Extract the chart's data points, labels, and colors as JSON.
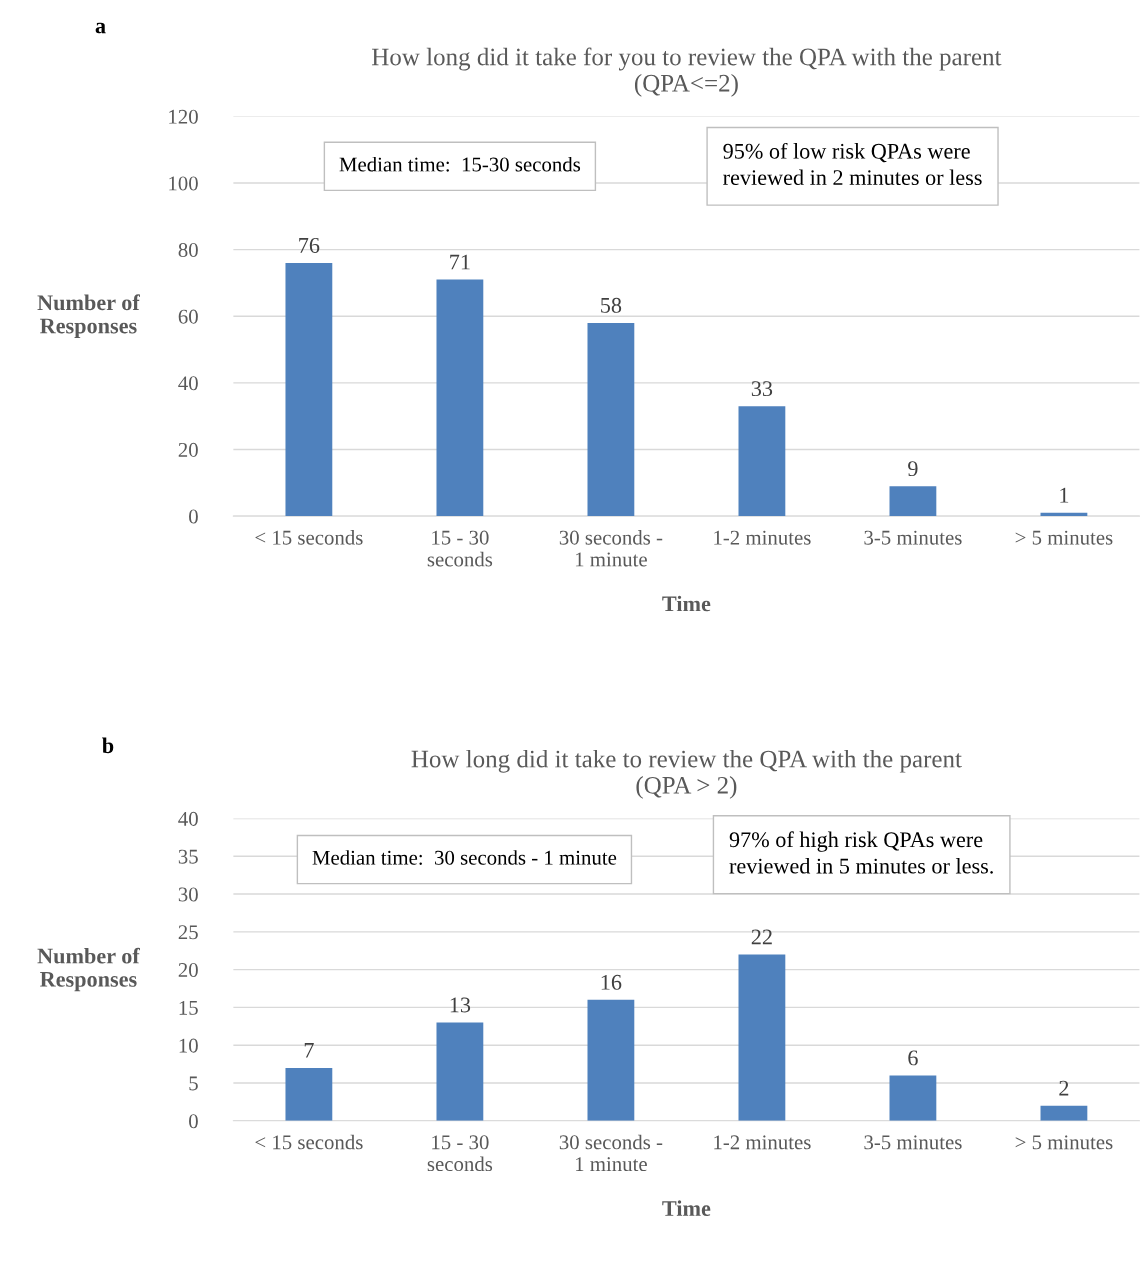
{
  "chart_data": [
    {
      "type": "bar",
      "title": "How long did it take for you to review the QPA with the parent\n(QPA<=2)",
      "xlabel": "Time",
      "ylabel": "Number of\nResponses",
      "categories": [
        "< 15 seconds",
        "15 - 30\nseconds",
        "30 seconds -\n1 minute",
        "1-2 minutes",
        "3-5 minutes",
        "> 5 minutes"
      ],
      "values": [
        76,
        71,
        58,
        33,
        9,
        1
      ],
      "color": "#4f81bd",
      "ylim": [
        0,
        120
      ],
      "yticks": [
        0,
        20,
        40,
        60,
        80,
        100,
        120
      ],
      "grid": "y",
      "data_labels": true,
      "legend": false,
      "annotations": [
        "a",
        "Median time:  15-30 seconds",
        "95% of low risk QPAs were\nreviewed in 2 minutes or less"
      ]
    },
    {
      "type": "bar",
      "title": "How long did it take to review the QPA with the parent\n(QPA > 2)",
      "xlabel": "Time",
      "ylabel": "Number of\nResponses",
      "categories": [
        "< 15 seconds",
        "15 - 30\nseconds",
        "30 seconds -\n1 minute",
        "1-2 minutes",
        "3-5 minutes",
        "> 5 minutes"
      ],
      "values": [
        7,
        13,
        16,
        22,
        6,
        2
      ],
      "color": "#4f81bd",
      "ylim": [
        0,
        40
      ],
      "yticks": [
        0,
        5,
        10,
        15,
        20,
        25,
        30,
        35,
        40
      ],
      "grid": "y",
      "data_labels": true,
      "legend": false,
      "annotations": [
        "b",
        "Median time:  30 seconds - 1 minute",
        "97% of high risk QPAs were\nreviewed in 5 minutes or less."
      ]
    }
  ]
}
